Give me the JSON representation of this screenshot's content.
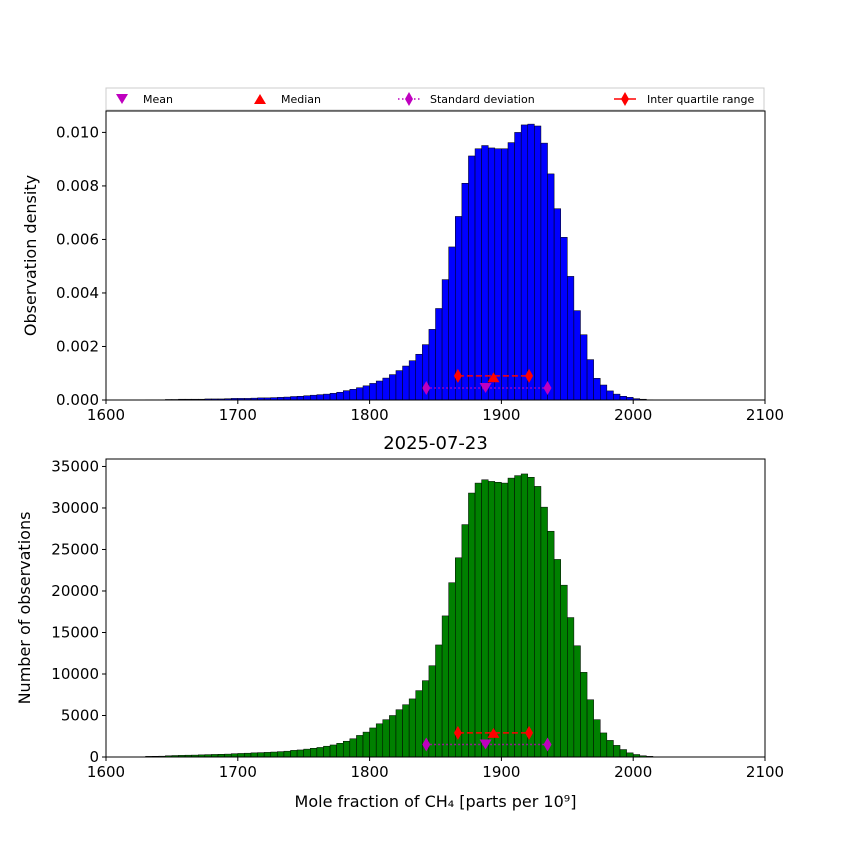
{
  "legend": {
    "items": [
      {
        "label": "Mean",
        "marker": "triangle-down",
        "color": "#bf00bf"
      },
      {
        "label": "Median",
        "marker": "triangle-up",
        "color": "#ff0000"
      },
      {
        "label": "Standard deviation",
        "marker": "thin-diamond",
        "color": "#bf00bf",
        "line": "dotted"
      },
      {
        "label": "Inter quartile range",
        "marker": "thin-diamond",
        "color": "#ff0000",
        "line": "dashed"
      }
    ]
  },
  "chart_data": [
    {
      "type": "bar",
      "subtype": "histogram",
      "ylabel": "Observation density",
      "xlim": [
        1600,
        2100
      ],
      "ylim": [
        0,
        0.0108
      ],
      "xticks": [
        "1600",
        "1700",
        "1800",
        "1900",
        "2000",
        "2100"
      ],
      "yticks": [
        "0.000",
        "0.002",
        "0.004",
        "0.006",
        "0.008",
        "0.010"
      ],
      "bar_color": "#0000ff",
      "bin_width": 5,
      "bin_start": 1630,
      "values": [
        1e-05,
        1e-05,
        1e-05,
        2e-05,
        2e-05,
        3e-05,
        3e-05,
        3e-05,
        3e-05,
        4e-05,
        4e-05,
        4e-05,
        5e-05,
        6e-05,
        6e-05,
        6e-05,
        7e-05,
        8e-05,
        8e-05,
        9e-05,
        0.0001,
        0.00011,
        0.00013,
        0.00014,
        0.00016,
        0.00018,
        0.0002,
        0.00022,
        0.00025,
        0.00029,
        0.00035,
        0.0004,
        0.00046,
        0.00053,
        0.00062,
        0.00071,
        0.00082,
        0.00095,
        0.0011,
        0.00127,
        0.00147,
        0.00171,
        0.00207,
        0.00264,
        0.00342,
        0.0045,
        0.00572,
        0.00686,
        0.0081,
        0.00912,
        0.00939,
        0.00951,
        0.00942,
        0.00939,
        0.00939,
        0.00962,
        0.01,
        0.01028,
        0.01031,
        0.01024,
        0.0096,
        0.00845,
        0.00715,
        0.00608,
        0.00462,
        0.00334,
        0.00244,
        0.00151,
        0.00081,
        0.00056,
        0.00034,
        0.00022,
        0.00014,
        0.0001,
        5e-05,
        3e-05,
        1e-05
      ],
      "stats": {
        "mean": {
          "x": 1888,
          "y": 0.00045
        },
        "median": {
          "x": 1894,
          "y": 0.00085
        },
        "std": {
          "x": [
            1843,
            1935
          ],
          "y": 0.00045
        },
        "iqr": {
          "x": [
            1867,
            1921
          ],
          "y": 0.0009
        }
      }
    },
    {
      "type": "bar",
      "subtype": "histogram",
      "title": "2025-07-23",
      "xlabel": "Mole fraction of CH₄ [parts per 10⁹]",
      "ylabel": "Number of observations",
      "xlim": [
        1600,
        2100
      ],
      "ylim": [
        0,
        35900
      ],
      "xticks": [
        "1600",
        "1700",
        "1800",
        "1900",
        "2000",
        "2100"
      ],
      "yticks": [
        "0",
        "5000",
        "10000",
        "15000",
        "20000",
        "25000",
        "30000",
        "35000"
      ],
      "bar_color": "#008000",
      "bin_width": 5,
      "bin_start": 1630,
      "values": [
        80,
        90,
        100,
        150,
        180,
        200,
        220,
        230,
        260,
        290,
        310,
        330,
        350,
        400,
        430,
        460,
        500,
        530,
        560,
        600,
        650,
        700,
        800,
        850,
        950,
        1050,
        1150,
        1300,
        1450,
        1650,
        1900,
        2200,
        2600,
        3000,
        3500,
        4000,
        4500,
        5000,
        5700,
        6300,
        7000,
        8000,
        9200,
        11000,
        13500,
        17000,
        21000,
        24000,
        28000,
        31800,
        33000,
        33400,
        33200,
        33100,
        33000,
        33600,
        33900,
        34100,
        33700,
        32600,
        30100,
        27200,
        23800,
        20700,
        16800,
        13400,
        10200,
        6900,
        4500,
        2900,
        2000,
        1400,
        900,
        500,
        300,
        150,
        80
      ],
      "stats": {
        "mean": {
          "x": 1888,
          "y": 1500
        },
        "median": {
          "x": 1894,
          "y": 2900
        },
        "std": {
          "x": [
            1843,
            1935
          ],
          "y": 1500
        },
        "iqr": {
          "x": [
            1867,
            1921
          ],
          "y": 2900
        }
      }
    }
  ]
}
